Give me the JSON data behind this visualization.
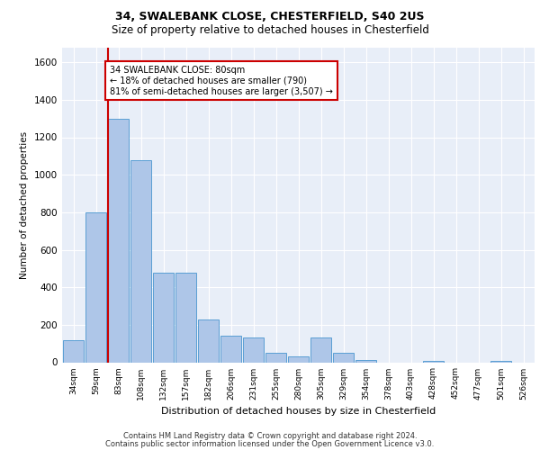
{
  "title1": "34, SWALEBANK CLOSE, CHESTERFIELD, S40 2US",
  "title2": "Size of property relative to detached houses in Chesterfield",
  "xlabel": "Distribution of detached houses by size in Chesterfield",
  "ylabel": "Number of detached properties",
  "categories": [
    "34sqm",
    "59sqm",
    "83sqm",
    "108sqm",
    "132sqm",
    "157sqm",
    "182sqm",
    "206sqm",
    "231sqm",
    "255sqm",
    "280sqm",
    "305sqm",
    "329sqm",
    "354sqm",
    "378sqm",
    "403sqm",
    "428sqm",
    "452sqm",
    "477sqm",
    "501sqm",
    "526sqm"
  ],
  "values": [
    120,
    800,
    1300,
    1080,
    480,
    480,
    230,
    140,
    130,
    50,
    30,
    130,
    50,
    10,
    0,
    0,
    5,
    0,
    0,
    5,
    0
  ],
  "bar_color": "#aec6e8",
  "bar_edge_color": "#5a9fd4",
  "vline_color": "#cc0000",
  "annotation_text": "34 SWALEBANK CLOSE: 80sqm\n← 18% of detached houses are smaller (790)\n81% of semi-detached houses are larger (3,507) →",
  "annotation_box_color": "#ffffff",
  "annotation_box_edge": "#cc0000",
  "ylim": [
    0,
    1680
  ],
  "yticks": [
    0,
    200,
    400,
    600,
    800,
    1000,
    1200,
    1400,
    1600
  ],
  "footer1": "Contains HM Land Registry data © Crown copyright and database right 2024.",
  "footer2": "Contains public sector information licensed under the Open Government Licence v3.0.",
  "bg_color": "#e8eef8",
  "fig_bg_color": "#ffffff"
}
